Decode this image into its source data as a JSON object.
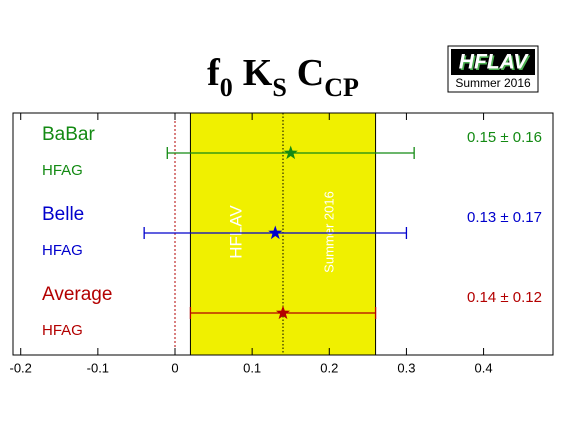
{
  "chart_data": {
    "type": "interval",
    "title": [
      {
        "text": "f",
        "sub": "0"
      },
      {
        "text": "K",
        "sub": "S"
      },
      {
        "text": "C",
        "sub": "CP"
      }
    ],
    "logo": {
      "text": "HFLAV",
      "subtext": "Summer 2016"
    },
    "watermark": {
      "text": "HFLAV",
      "subtext": "Summer 2016"
    },
    "categories": [
      "BaBar",
      "Belle",
      "Average"
    ],
    "sublabels": [
      "HFAG",
      "HFAG",
      "HFAG"
    ],
    "values": [
      0.15,
      0.13,
      0.14
    ],
    "errors": [
      0.16,
      0.17,
      0.12
    ],
    "value_labels": [
      "0.15 ± 0.16",
      "0.13 ± 0.17",
      "0.14 ± 0.12"
    ],
    "colors": [
      "#138a13",
      "#0000cc",
      "#b30000"
    ],
    "band_color": "#f0f000",
    "xlim": [
      -0.21,
      0.49
    ],
    "xticks": [
      -0.2,
      -0.1,
      0,
      0.1,
      0.2,
      0.3,
      0.4
    ]
  }
}
